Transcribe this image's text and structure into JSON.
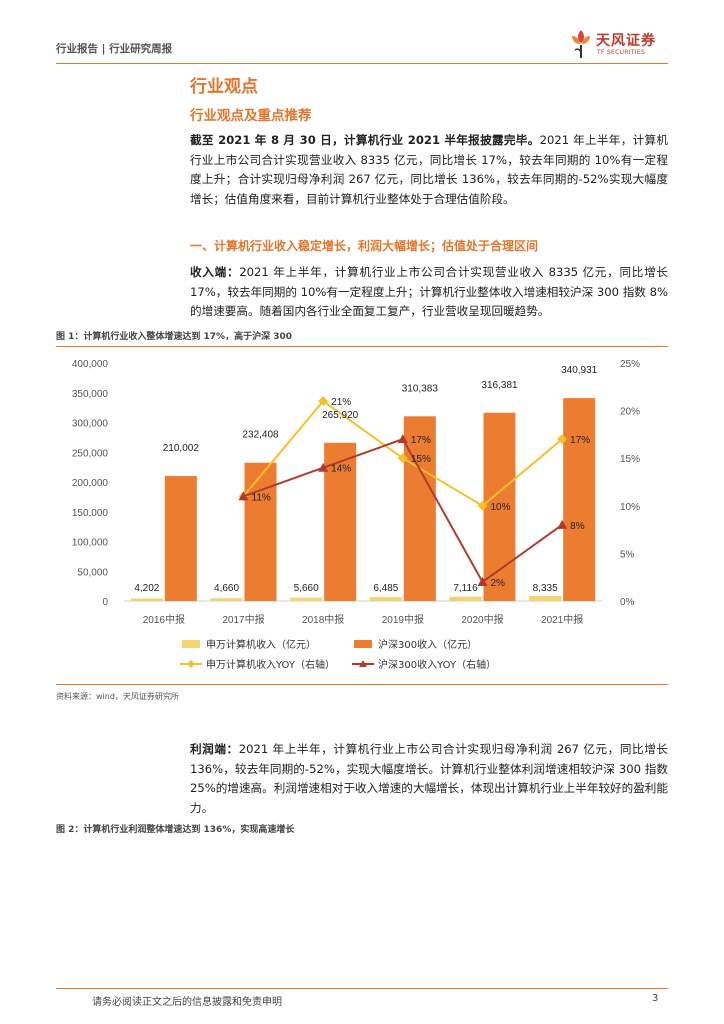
{
  "header": {
    "left": "行业报告 | 行业研究周报",
    "logo_name": "天风证券",
    "logo_sub": "TF SECURITIES",
    "accent": "#e5752a"
  },
  "section": {
    "title": "行业观点",
    "subtitle": "行业观点及重点推荐"
  },
  "intro": {
    "bold": "截至 2021 年 8 月 30 日，计算机行业 2021 半年报披露完毕。",
    "text": "2021 年上半年，计算机行业上市公司合计实现营业收入 8335 亿元，同比增长 17%，较去年同期的 10%有一定程度上升；合计实现归母净利润 267 亿元，同比增长 136%，较去年同期的-52%实现大幅度增长；估值角度来看，目前计算机行业整体处于合理估值阶段。"
  },
  "subsection1": {
    "title": "一、计算机行业收入稳定增长，利润大幅增长；估值处于合理区间",
    "revenue_lead": "收入端：",
    "revenue_text": "2021 年上半年，计算机行业上市公司合计实现营业收入 8335 亿元，同比增长 17%，较去年同期的 10%有一定程度上升；计算机行业整体收入增速相较沪深 300 指数 8%的增速要高。随着国内各行业全面复工复产，行业营收呈现回暖趋势。"
  },
  "figure1": {
    "title": "图 1：计算机行业收入整体增速达到 17%，高于沪深 300",
    "source": "资料来源：wind，天风证券研究所"
  },
  "chart_data": {
    "type": "bar",
    "categories": [
      "2016中报",
      "2017中报",
      "2018中报",
      "2019中报",
      "2020中报",
      "2021中报"
    ],
    "series": [
      {
        "name": "申万计算机收入（亿元）",
        "kind": "bar",
        "axis": "left",
        "color": "#f5d36e",
        "values": [
          4202,
          4660,
          5660,
          6485,
          7116,
          8335
        ],
        "labels": [
          "4,202",
          "4,660",
          "5,660",
          "6,485",
          "7,116",
          "8,335"
        ]
      },
      {
        "name": "沪深300收入（亿元）",
        "kind": "bar",
        "axis": "left",
        "color": "#ec7c30",
        "values": [
          210002,
          232408,
          265920,
          310383,
          316381,
          340931
        ],
        "labels": [
          "210,002",
          "232,408",
          "265,920",
          "310,383",
          "316,381",
          "340,931"
        ]
      },
      {
        "name": "申万计算机收入YOY（右轴）",
        "kind": "line",
        "axis": "right",
        "color": "#f5c02a",
        "marker": "diamond",
        "values": [
          null,
          11,
          21,
          15,
          10,
          17
        ],
        "labels": [
          "",
          "11%",
          "21%",
          "15%",
          "10%",
          "17%"
        ]
      },
      {
        "name": "沪深300收入YOY（右轴）",
        "kind": "line",
        "axis": "right",
        "color": "#b03a2e",
        "marker": "triangle",
        "values": [
          null,
          11,
          14,
          17,
          2,
          8
        ],
        "labels": [
          "",
          "",
          "14%",
          "17%",
          "2%",
          "8%"
        ]
      }
    ],
    "y_left": {
      "min": 0,
      "max": 400000,
      "step": 50000,
      "ticks": [
        "0",
        "50,000",
        "100,000",
        "150,000",
        "200,000",
        "250,000",
        "300,000",
        "350,000",
        "400,000"
      ]
    },
    "y_right": {
      "min": 0,
      "max": 25,
      "step": 5,
      "ticks": [
        "0%",
        "5%",
        "10%",
        "15%",
        "20%",
        "25%"
      ]
    },
    "grid": false,
    "legend": "bottom"
  },
  "profit": {
    "lead": "利润端：",
    "text": "2021 年上半年，计算机行业上市公司合计实现归母净利润 267 亿元，同比增长 136%，较去年同期的-52%，实现大幅度增长。计算机行业整体利润增速相较沪深 300 指数 25%的增速高。利润增速相对于收入增速的大幅增长，体现出计算机行业上半年较好的盈利能力。"
  },
  "figure2": {
    "title": "图 2：计算机行业利润整体增速达到 136%，实现高速增长"
  },
  "footer": {
    "disclaimer": "请务必阅读正文之后的信息披露和免责申明",
    "page": "3"
  }
}
